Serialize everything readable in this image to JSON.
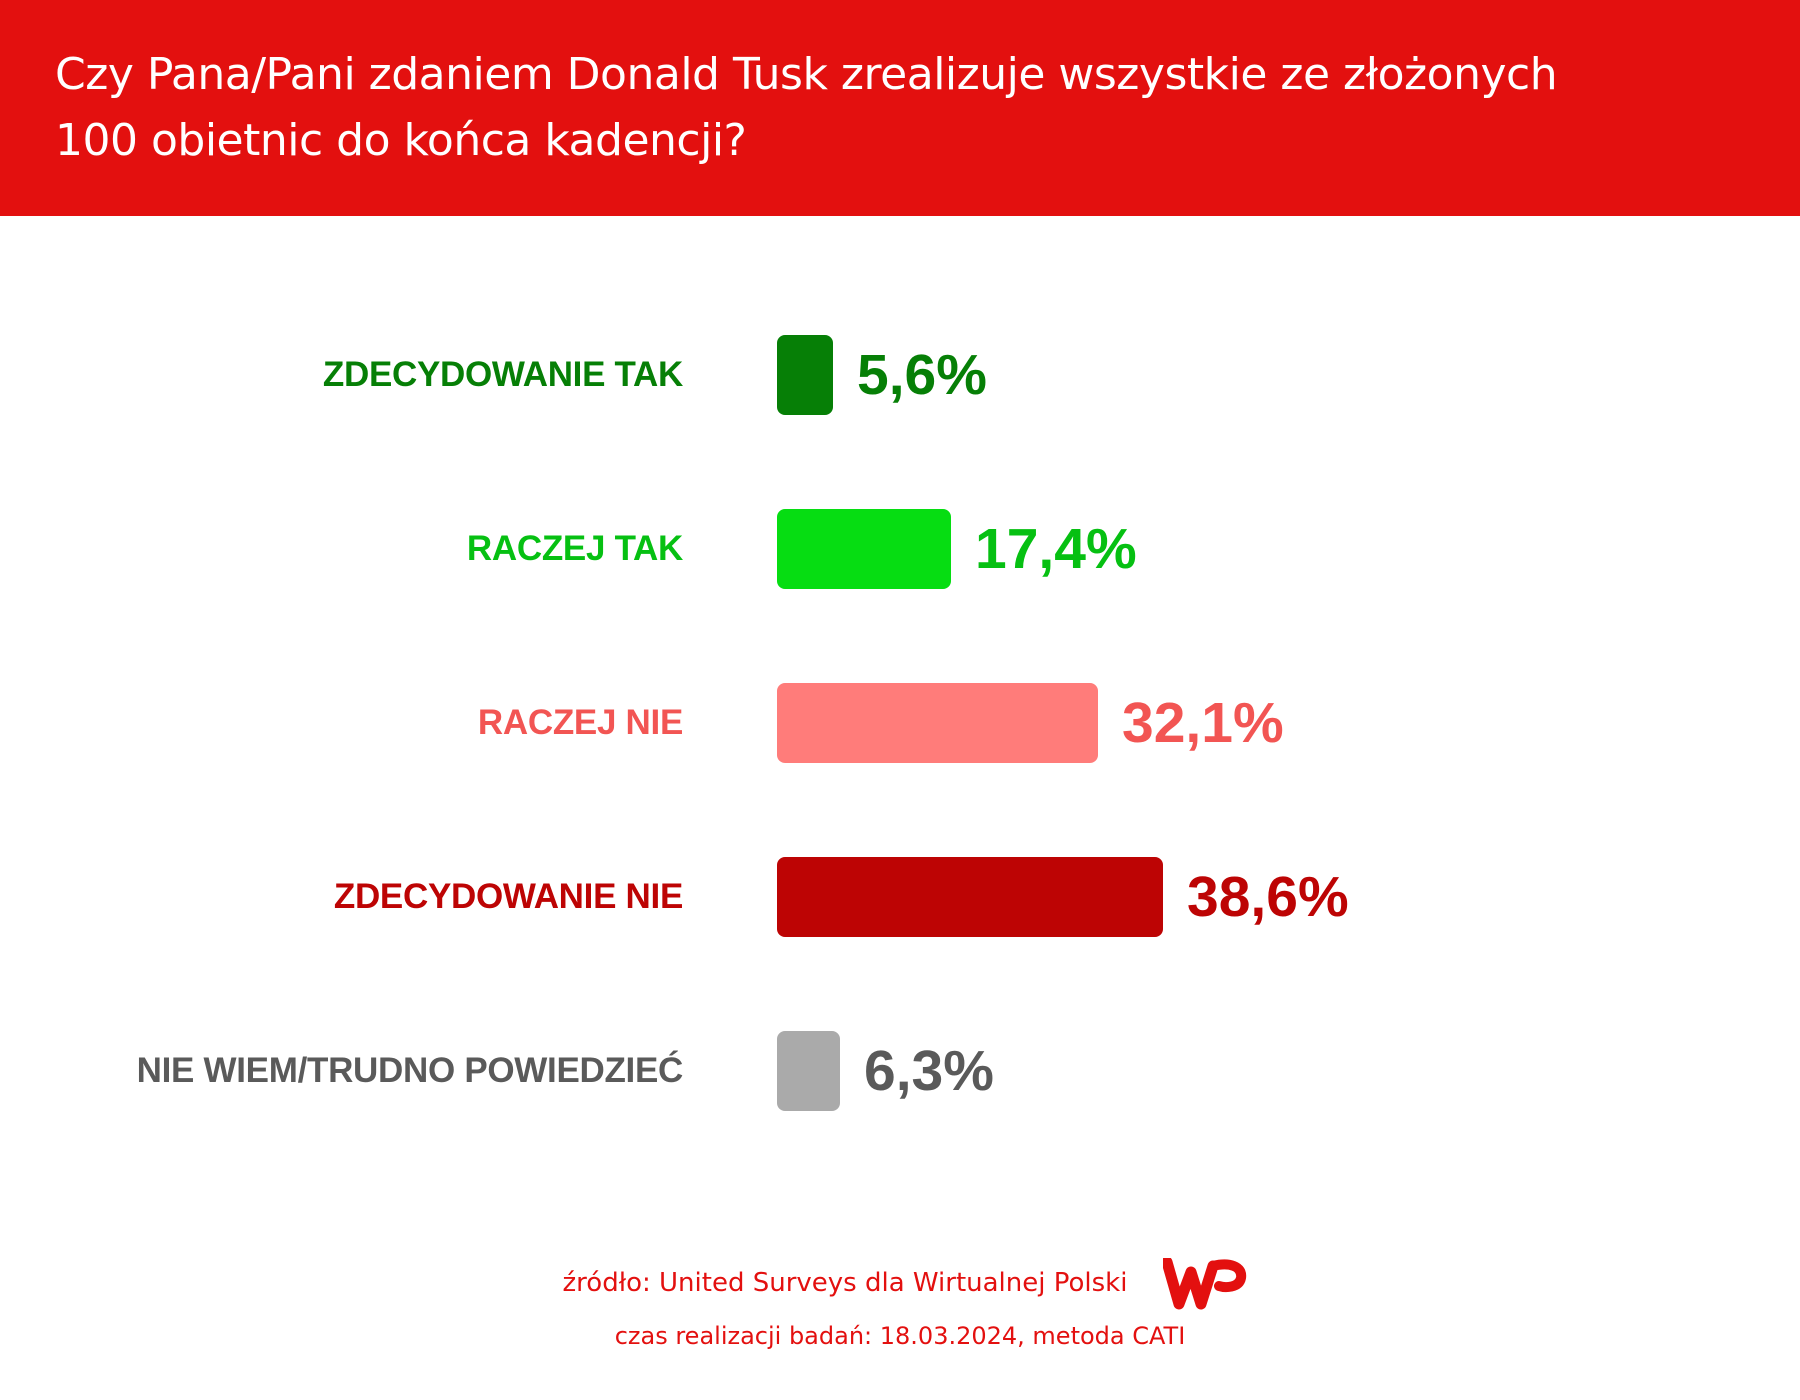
{
  "header": {
    "title_line1": "Czy Pana/Pani zdaniem Donald Tusk zrealizuje wszystkie ze złożonych",
    "title_line2": "100 obietnic do końca kadencji?"
  },
  "chart_data": {
    "type": "bar",
    "orientation": "horizontal",
    "title": "Czy Pana/Pani zdaniem Donald Tusk zrealizuje wszystkie ze złożonych 100 obietnic do końca kadencji?",
    "categories": [
      "ZDECYDOWANIE TAK",
      "RACZEJ TAK",
      "RACZEJ NIE",
      "ZDECYDOWANIE NIE",
      "NIE WIEM/TRUDNO POWIEDZIEĆ"
    ],
    "values": [
      5.6,
      17.4,
      32.1,
      38.6,
      6.3
    ],
    "value_labels": [
      "5,6%",
      "17,4%",
      "32,1%",
      "38,6%",
      "6,3%"
    ],
    "bar_colors": [
      "#067f06",
      "#06dd12",
      "#ff7c7a",
      "#bd0404",
      "#aaaaaa"
    ],
    "text_colors": [
      "#067f06",
      "#06c012",
      "#f25553",
      "#bd0404",
      "#5a5a5a"
    ],
    "unit": "%"
  },
  "footer": {
    "source": "źródło: United Surveys dla Wirtualnej Polski",
    "details": "czas realizacji badań: 18.03.2024, metoda CATI",
    "logo_text": "WP"
  },
  "colors": {
    "brand": "#e3100f"
  }
}
